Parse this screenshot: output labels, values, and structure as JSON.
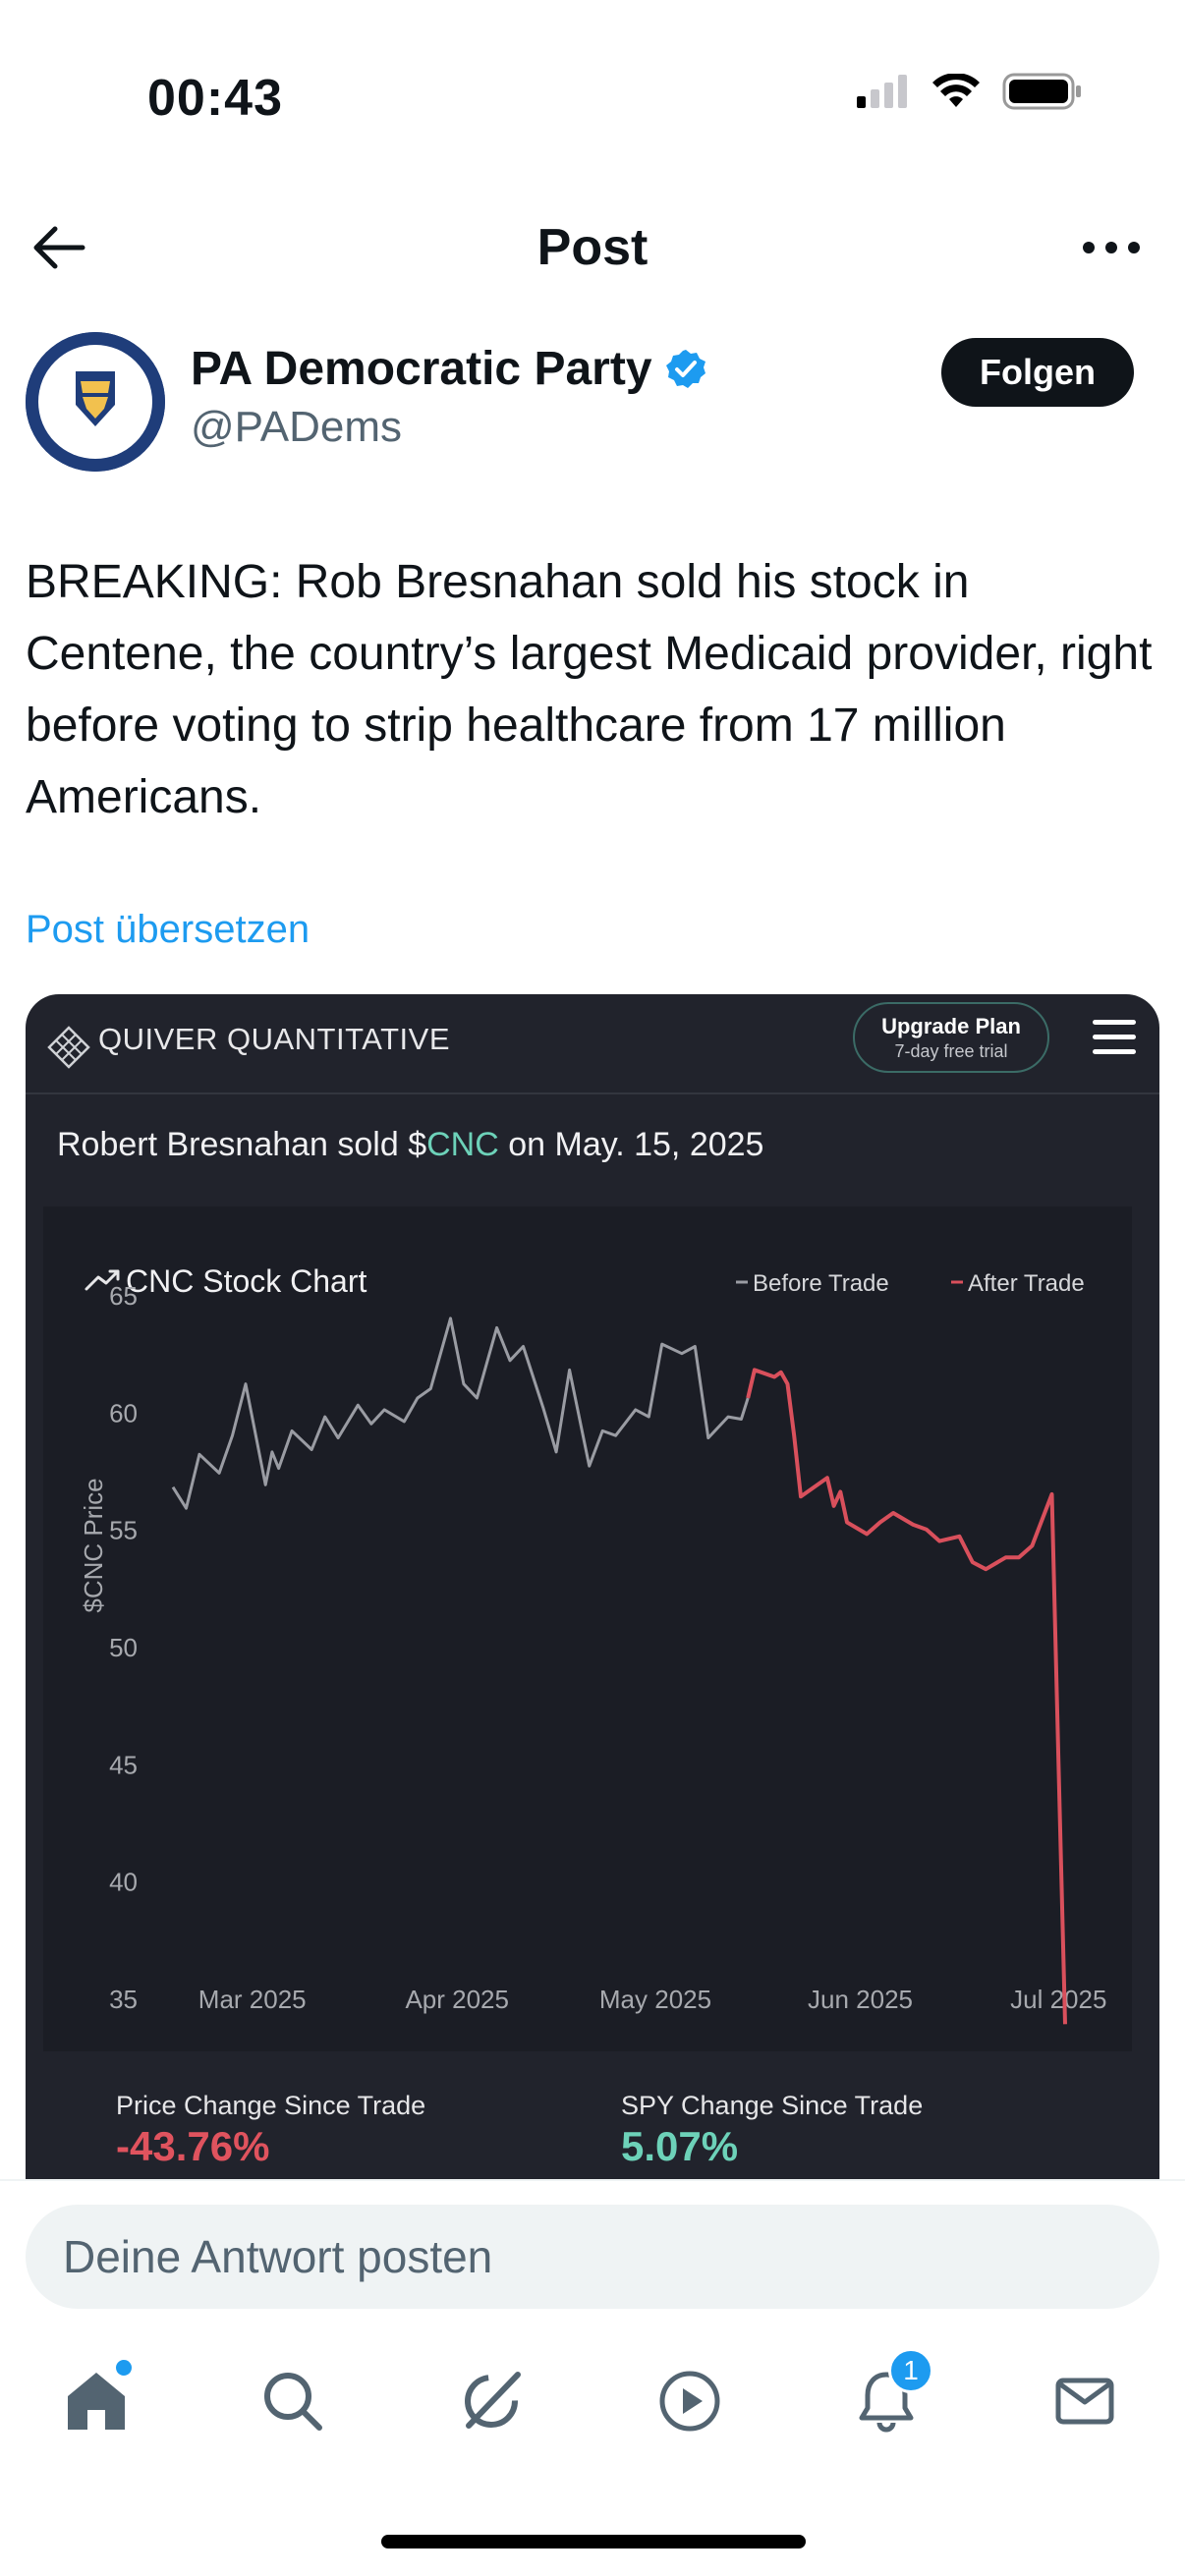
{
  "status_bar": {
    "time": "00:43"
  },
  "nav": {
    "title": "Post"
  },
  "author": {
    "name": "PA Democratic Party",
    "handle": "@PADems",
    "follow_label": "Folgen",
    "verified": true
  },
  "post": {
    "text": "BREAKING: Rob Bresnahan sold his stock in Centene, the country’s largest Medicaid provider, right before voting to strip healthcare from 17 million Americans.",
    "translate_label": "Post übersetzen"
  },
  "media": {
    "brand": "QUIVER QUANTITATIVE",
    "upgrade_title": "Upgrade Plan",
    "upgrade_sub": "7-day free trial",
    "trade_prefix": "Robert Bresnahan sold $",
    "ticker": "CNC",
    "trade_suffix": " on May. 15, 2025",
    "stats": {
      "price_change_label": "Price Change Since Trade",
      "price_change_value": "-43.76%",
      "spy_change_label": "SPY Change Since Trade",
      "spy_change_value": "5.07%"
    },
    "colors": {
      "before": "#9a9ca3",
      "after": "#d9505c",
      "accent": "#6dd2b9"
    }
  },
  "chart_data": {
    "type": "line",
    "title": "CNC Stock Chart",
    "ylabel": "$CNC Price",
    "xlabel": "",
    "ylim": [
      35,
      65
    ],
    "yticks": [
      65,
      60,
      55,
      50,
      45,
      40,
      35
    ],
    "xticks": [
      "Mar 2025",
      "Apr 2025",
      "May 2025",
      "Jun 2025",
      "Jul 2025"
    ],
    "legend": "top-right",
    "grid": false,
    "series": [
      {
        "name": "Before Trade",
        "color": "#9a9ca3",
        "x": [
          "2025-02-17",
          "2025-02-19",
          "2025-02-21",
          "2025-02-24",
          "2025-02-26",
          "2025-02-28",
          "2025-03-03",
          "2025-03-04",
          "2025-03-05",
          "2025-03-07",
          "2025-03-10",
          "2025-03-12",
          "2025-03-14",
          "2025-03-17",
          "2025-03-19",
          "2025-03-21",
          "2025-03-24",
          "2025-03-26",
          "2025-03-28",
          "2025-03-31",
          "2025-04-02",
          "2025-04-04",
          "2025-04-07",
          "2025-04-09",
          "2025-04-11",
          "2025-04-14",
          "2025-04-16",
          "2025-04-18",
          "2025-04-21",
          "2025-04-23",
          "2025-04-25",
          "2025-04-28",
          "2025-04-30",
          "2025-05-02",
          "2025-05-05",
          "2025-05-07",
          "2025-05-09",
          "2025-05-12",
          "2025-05-14",
          "2025-05-15"
        ],
        "values": [
          56.8,
          55.9,
          58.2,
          57.4,
          59.0,
          61.2,
          56.9,
          58.3,
          57.6,
          59.2,
          58.4,
          59.8,
          58.9,
          60.3,
          59.5,
          60.1,
          59.6,
          60.6,
          61.0,
          64.0,
          61.2,
          60.6,
          63.6,
          62.2,
          62.8,
          60.2,
          58.3,
          61.8,
          57.7,
          59.2,
          59.0,
          60.1,
          59.8,
          62.9,
          62.5,
          62.8,
          58.9,
          59.8,
          59.7,
          60.6
        ]
      },
      {
        "name": "After Trade",
        "color": "#d9505c",
        "x": [
          "2025-05-15",
          "2025-05-16",
          "2025-05-19",
          "2025-05-20",
          "2025-05-21",
          "2025-05-22",
          "2025-05-23",
          "2025-05-27",
          "2025-05-28",
          "2025-05-29",
          "2025-05-30",
          "2025-06-02",
          "2025-06-04",
          "2025-06-06",
          "2025-06-09",
          "2025-06-11",
          "2025-06-13",
          "2025-06-16",
          "2025-06-18",
          "2025-06-20",
          "2025-06-23",
          "2025-06-25",
          "2025-06-27",
          "2025-06-30",
          "2025-07-01",
          "2025-07-02"
        ],
        "values": [
          60.6,
          61.8,
          61.5,
          61.7,
          61.2,
          59.0,
          56.4,
          57.2,
          56.0,
          56.6,
          55.3,
          54.8,
          55.3,
          55.7,
          55.2,
          55.0,
          54.5,
          54.7,
          53.6,
          53.3,
          53.8,
          53.8,
          54.3,
          56.5,
          45.0,
          33.9
        ]
      }
    ]
  },
  "reply": {
    "placeholder": "Deine Antwort posten"
  },
  "tabbar": {
    "notifications_badge": "1"
  }
}
